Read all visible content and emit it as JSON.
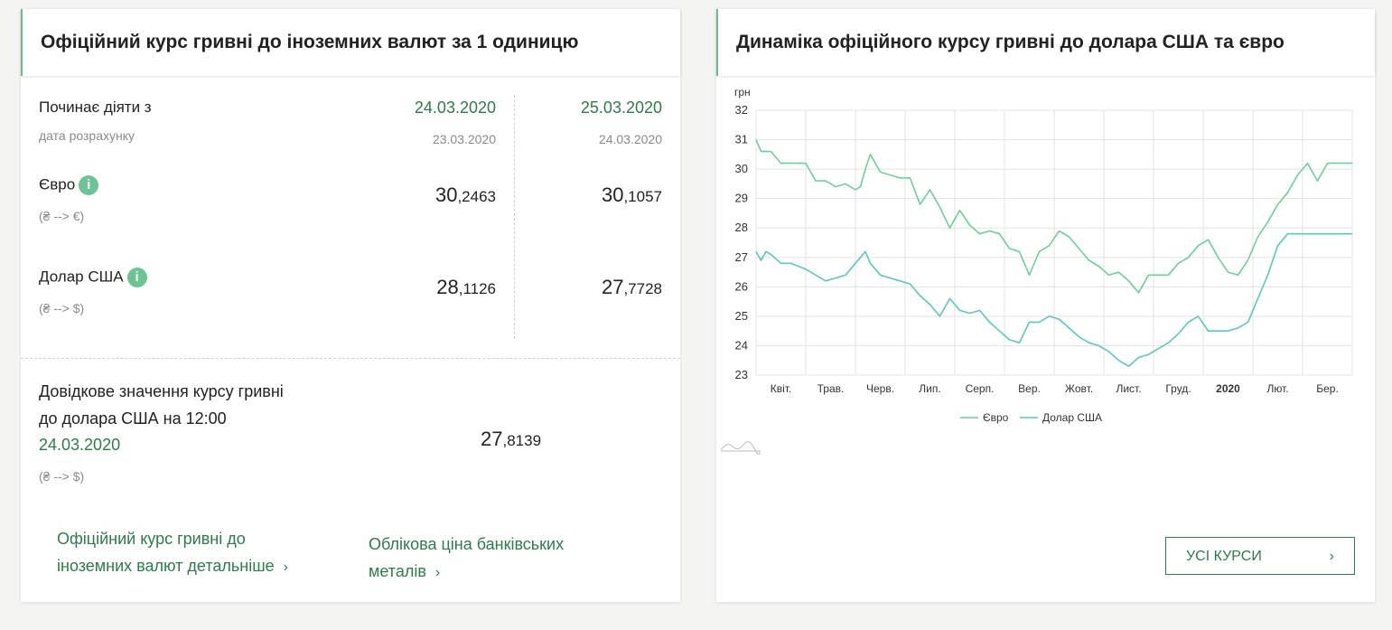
{
  "left": {
    "title": "Офіційний курс гривні до іноземних валют за 1 одиницю",
    "starts_label": "Починає діяти з",
    "calc_date_label": "дата розрахунку",
    "col1": {
      "date": "24.03.2020",
      "calc_date": "23.03.2020"
    },
    "col2": {
      "date": "25.03.2020",
      "calc_date": "24.03.2020"
    },
    "euro": {
      "label": "Євро",
      "info": "i",
      "direction": "(₴ --> €)",
      "v1_int": "30",
      "v1_frac": ",2463",
      "v2_int": "30",
      "v2_frac": ",1057"
    },
    "usd": {
      "label": "Долар США",
      "info": "i",
      "direction": "(₴ --> $)",
      "v1_int": "28",
      "v1_frac": ",1126",
      "v2_int": "27",
      "v2_frac": ",7728"
    },
    "reference": {
      "line1": "Довідкове значення курсу гривні",
      "line2": "до долара США на 12:00",
      "date": "24.03.2020",
      "direction": "(₴ --> $)",
      "value_int": "27",
      "value_frac": ",8139"
    },
    "links": {
      "detailed_line1": "Офіційний курс гривні до",
      "detailed_line2": "іноземних валют детальніше",
      "metals_line1": "Облікова ціна банківських",
      "metals_line2": "металів",
      "chevron": "›"
    }
  },
  "right": {
    "title": "Динаміка офіційного курсу гривні до долара США та євро",
    "button_label": "УСІ КУРСИ",
    "chevron": "›"
  },
  "chart_data": {
    "type": "line",
    "unit_label": "грн",
    "ylim": [
      23,
      32
    ],
    "yticks": [
      23,
      24,
      25,
      26,
      27,
      28,
      29,
      30,
      31,
      32
    ],
    "x_tick_labels": [
      "Квіт.",
      "Трав.",
      "Черв.",
      "Лип.",
      "Серп.",
      "Вер.",
      "Жовт.",
      "Лист.",
      "Груд.",
      "2020",
      "Лют.",
      "Бер."
    ],
    "x_range_months": [
      0,
      12
    ],
    "grid": true,
    "legend_placement": "bottom-center",
    "colors": {
      "euro": "#6fcf97",
      "usd": "#5cc7bd",
      "grid": "#e3e3e3"
    },
    "series": [
      {
        "name": "Євро",
        "x": [
          0.0,
          0.1,
          0.2,
          0.3,
          0.5,
          0.7,
          1.0,
          1.2,
          1.4,
          1.6,
          1.8,
          2.0,
          2.1,
          2.2,
          2.3,
          2.5,
          2.7,
          2.9,
          3.1,
          3.3,
          3.5,
          3.7,
          3.9,
          4.1,
          4.3,
          4.5,
          4.7,
          4.9,
          5.1,
          5.3,
          5.5,
          5.7,
          5.9,
          6.1,
          6.3,
          6.5,
          6.7,
          6.9,
          7.1,
          7.3,
          7.5,
          7.7,
          7.9,
          8.1,
          8.3,
          8.5,
          8.7,
          8.9,
          9.1,
          9.3,
          9.5,
          9.7,
          9.9,
          10.1,
          10.3,
          10.5,
          10.7,
          10.9,
          11.1,
          11.3,
          11.5,
          11.6,
          11.7,
          11.8,
          11.9,
          12.0
        ],
        "values": [
          31.0,
          30.6,
          30.6,
          30.6,
          30.2,
          30.2,
          30.2,
          29.6,
          29.6,
          29.4,
          29.5,
          29.3,
          29.4,
          30.0,
          30.5,
          29.9,
          29.8,
          29.7,
          29.7,
          28.8,
          29.3,
          28.7,
          28.0,
          28.6,
          28.1,
          27.8,
          27.9,
          27.8,
          27.3,
          27.2,
          26.4,
          27.2,
          27.4,
          27.9,
          27.7,
          27.3,
          26.9,
          26.7,
          26.4,
          26.5,
          26.2,
          25.8,
          26.4,
          26.4,
          26.4,
          26.8,
          27.0,
          27.4,
          27.6,
          27.0,
          26.5,
          26.4,
          26.9,
          27.7,
          28.2,
          28.8,
          29.2,
          29.8,
          30.2,
          29.6,
          30.2,
          30.2,
          30.2,
          30.2,
          30.2,
          30.2
        ]
      },
      {
        "name": "Долар США",
        "x": [
          0.0,
          0.1,
          0.2,
          0.3,
          0.5,
          0.7,
          1.0,
          1.2,
          1.4,
          1.6,
          1.8,
          2.0,
          2.1,
          2.2,
          2.3,
          2.5,
          2.7,
          2.9,
          3.1,
          3.3,
          3.5,
          3.7,
          3.9,
          4.1,
          4.3,
          4.5,
          4.7,
          4.9,
          5.1,
          5.3,
          5.5,
          5.7,
          5.9,
          6.1,
          6.3,
          6.5,
          6.7,
          6.9,
          7.1,
          7.3,
          7.5,
          7.7,
          7.9,
          8.1,
          8.3,
          8.5,
          8.7,
          8.9,
          9.1,
          9.3,
          9.5,
          9.7,
          9.9,
          10.1,
          10.3,
          10.5,
          10.7,
          10.9,
          11.1,
          11.3,
          11.5,
          11.6,
          11.7,
          11.8,
          11.9,
          12.0
        ],
        "values": [
          27.2,
          26.9,
          27.2,
          27.1,
          26.8,
          26.8,
          26.6,
          26.4,
          26.2,
          26.3,
          26.4,
          26.8,
          27.0,
          27.2,
          26.8,
          26.4,
          26.3,
          26.2,
          26.1,
          25.7,
          25.4,
          25.0,
          25.6,
          25.2,
          25.1,
          25.2,
          24.8,
          24.5,
          24.2,
          24.1,
          24.8,
          24.8,
          25.0,
          24.9,
          24.6,
          24.3,
          24.1,
          24.0,
          23.8,
          23.5,
          23.3,
          23.6,
          23.7,
          23.9,
          24.1,
          24.4,
          24.8,
          25.0,
          24.5,
          24.5,
          24.5,
          24.6,
          24.8,
          25.6,
          26.4,
          27.4,
          27.8,
          27.8,
          27.8,
          27.8,
          27.8,
          27.8,
          27.8,
          27.8,
          27.8,
          27.8
        ]
      }
    ]
  }
}
